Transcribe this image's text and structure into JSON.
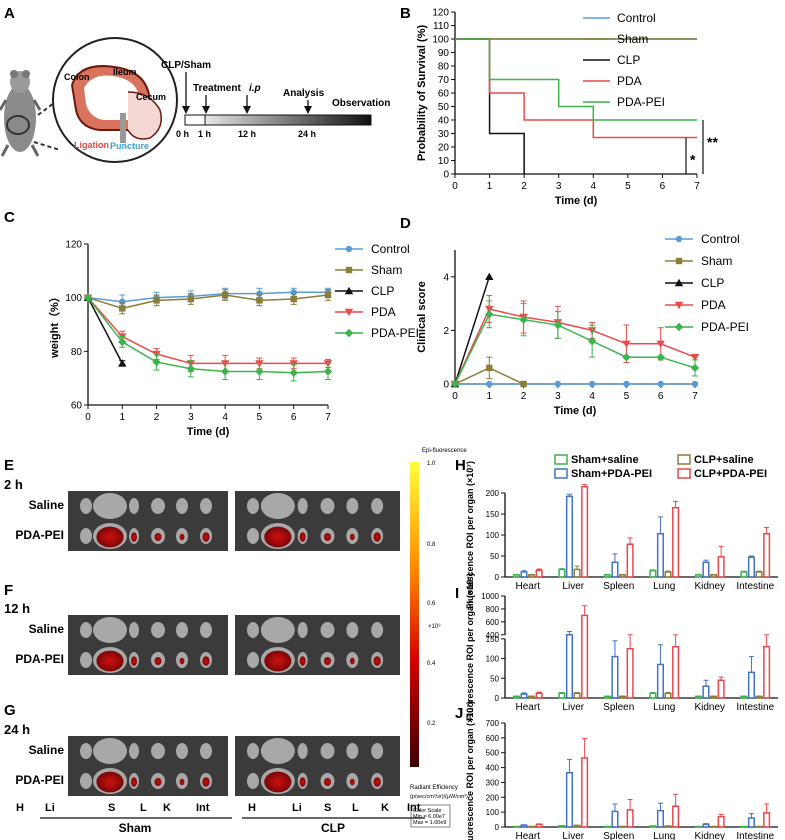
{
  "panel_labels": {
    "a": "A",
    "b": "B",
    "c": "C",
    "d": "D",
    "e": "E",
    "f": "F",
    "g": "G",
    "h": "H",
    "i": "I",
    "j": "J"
  },
  "schematic": {
    "colon": "Colon",
    "ileum": "Ileum",
    "cecum": "Cecum",
    "ligation": "Ligation",
    "puncture": "Puncture",
    "clp_sham": "CLP/Sham",
    "treatment": "Treatment",
    "ip": "i.p",
    "analysis": "Analysis",
    "observation": "Observation",
    "timeline": [
      "0 h",
      "1 h",
      "12 h",
      "24 h"
    ]
  },
  "chart_data": [
    {
      "id": "survival",
      "type": "line",
      "title": "",
      "xlabel": "Time (d)",
      "ylabel": "Probability of Survival (%)",
      "xlim": [
        0,
        7
      ],
      "ylim": [
        0,
        120
      ],
      "xticks": [
        "0",
        "1",
        "2",
        "3",
        "4",
        "5",
        "6",
        "7"
      ],
      "yticks": [
        "0",
        "10",
        "20",
        "30",
        "40",
        "50",
        "60",
        "70",
        "80",
        "90",
        "100",
        "110",
        "120"
      ],
      "series": [
        {
          "name": "Control",
          "color": "#5b9bd5",
          "x": [
            0,
            7
          ],
          "y": [
            100,
            100
          ]
        },
        {
          "name": "Sham",
          "color": "#8b7d3a",
          "x": [
            0,
            7
          ],
          "y": [
            100,
            100
          ]
        },
        {
          "name": "CLP",
          "color": "#111111",
          "x": [
            0,
            1,
            2
          ],
          "y": [
            100,
            30,
            0
          ]
        },
        {
          "name": "PDA",
          "color": "#e84c4c",
          "x": [
            0,
            1,
            2,
            4,
            7
          ],
          "y": [
            100,
            60,
            40,
            27,
            27
          ]
        },
        {
          "name": "PDA-PEI",
          "color": "#3cb44b",
          "x": [
            0,
            1,
            3,
            4,
            7
          ],
          "y": [
            100,
            70,
            50,
            40,
            40
          ]
        }
      ],
      "annotations": [
        "*",
        "**"
      ]
    },
    {
      "id": "weight",
      "type": "line",
      "xlabel": "Time (d)",
      "ylabel": "weight（%）",
      "xlim": [
        0,
        7
      ],
      "ylim": [
        60,
        120
      ],
      "xticks": [
        "0",
        "1",
        "2",
        "3",
        "4",
        "5",
        "6",
        "7"
      ],
      "yticks": [
        "60",
        "80",
        "100",
        "120"
      ],
      "series": [
        {
          "name": "Control",
          "color": "#5b9bd5",
          "marker": "circle",
          "x": [
            0,
            1,
            2,
            3,
            4,
            5,
            6,
            7
          ],
          "y": [
            100,
            98.5,
            100,
            100.5,
            101.5,
            101.5,
            102,
            102
          ],
          "err": [
            0,
            2.5,
            2,
            2,
            2,
            2,
            1.5,
            1.5
          ]
        },
        {
          "name": "Sham",
          "color": "#8b7d3a",
          "marker": "square",
          "x": [
            0,
            1,
            2,
            3,
            4,
            5,
            6,
            7
          ],
          "y": [
            100,
            96,
            99,
            99.5,
            101,
            99,
            99.5,
            101
          ],
          "err": [
            0,
            2,
            2,
            2,
            2,
            2,
            2,
            2
          ]
        },
        {
          "name": "CLP",
          "color": "#111111",
          "marker": "triangle",
          "x": [
            0,
            1
          ],
          "y": [
            100,
            75.5
          ],
          "err": [
            0,
            1
          ]
        },
        {
          "name": "PDA",
          "color": "#e84c4c",
          "marker": "triangle-down",
          "x": [
            0,
            1,
            2,
            3,
            4,
            5,
            6,
            7
          ],
          "y": [
            100,
            85.5,
            79,
            75.5,
            75.5,
            75.5,
            75.5,
            75.5
          ],
          "err": [
            0,
            2,
            2,
            3,
            3,
            2,
            2,
            1.5
          ]
        },
        {
          "name": "PDA-PEI",
          "color": "#3cb44b",
          "marker": "diamond",
          "x": [
            0,
            1,
            2,
            3,
            4,
            5,
            6,
            7
          ],
          "y": [
            100,
            83.5,
            76,
            73.5,
            72.5,
            72.5,
            72,
            72.5
          ],
          "err": [
            0,
            2,
            3,
            3,
            3,
            3,
            3,
            3
          ]
        }
      ]
    },
    {
      "id": "clinical",
      "type": "line",
      "xlabel": "Time (d)",
      "ylabel": "Clinical score",
      "xlim": [
        0,
        7
      ],
      "ylim": [
        0,
        5
      ],
      "xticks": [
        "0",
        "1",
        "2",
        "3",
        "4",
        "5",
        "6",
        "7"
      ],
      "yticks": [
        "0",
        "2",
        "4"
      ],
      "series": [
        {
          "name": "Control",
          "color": "#5b9bd5",
          "marker": "circle",
          "x": [
            0,
            1,
            2,
            3,
            4,
            5,
            6,
            7
          ],
          "y": [
            0,
            0,
            0,
            0,
            0,
            0,
            0,
            0
          ],
          "err": [
            0,
            0,
            0,
            0,
            0,
            0,
            0,
            0
          ]
        },
        {
          "name": "Sham",
          "color": "#8b7d3a",
          "marker": "square",
          "x": [
            0,
            1,
            2
          ],
          "y": [
            0,
            0.6,
            0
          ],
          "err": [
            0,
            0.4,
            0
          ]
        },
        {
          "name": "CLP",
          "color": "#111111",
          "marker": "triangle",
          "x": [
            0,
            1
          ],
          "y": [
            0,
            4
          ],
          "err": [
            0,
            0
          ]
        },
        {
          "name": "PDA",
          "color": "#e84c4c",
          "marker": "triangle-down",
          "x": [
            0,
            1,
            2,
            3,
            4,
            5,
            6,
            7
          ],
          "y": [
            0,
            2.8,
            2.5,
            2.3,
            2,
            1.5,
            1.5,
            1
          ],
          "err": [
            0,
            0.5,
            0.6,
            0.6,
            0.3,
            0.7,
            0.6,
            0
          ]
        },
        {
          "name": "PDA-PEI",
          "color": "#3cb44b",
          "marker": "diamond",
          "x": [
            0,
            1,
            2,
            3,
            4,
            5,
            6,
            7
          ],
          "y": [
            0,
            2.6,
            2.4,
            2.2,
            1.6,
            1,
            1,
            0.6
          ],
          "err": [
            0,
            0.5,
            0.6,
            0.5,
            0.6,
            0,
            0,
            0.3
          ]
        }
      ]
    },
    {
      "id": "bars2h",
      "type": "bar",
      "ylabel": "Fluorescence ROI per organ (×10⁷)",
      "ylim": [
        0,
        200
      ],
      "yticks": [
        "0",
        "50",
        "100",
        "150",
        "200"
      ],
      "categories": [
        "Heart",
        "Liver",
        "Spleen",
        "Lung",
        "Kidney",
        "Intestine"
      ],
      "series": [
        {
          "name": "Sham+saline",
          "color": "#3cb44b",
          "values": [
            5,
            18,
            5,
            15,
            5,
            12
          ],
          "err": [
            1,
            2,
            1,
            2,
            1,
            2
          ]
        },
        {
          "name": "Sham+PDA-PEI",
          "color": "#4472c4",
          "values": [
            12,
            192,
            35,
            103,
            35,
            47
          ],
          "err": [
            3,
            5,
            20,
            40,
            5,
            3
          ]
        },
        {
          "name": "CLP+saline",
          "color": "#8b7d3a",
          "values": [
            5,
            18,
            5,
            12,
            5,
            12
          ],
          "err": [
            1,
            8,
            1,
            2,
            1,
            2
          ]
        },
        {
          "name": "CLP+PDA-PEI",
          "color": "#e8484c",
          "values": [
            16,
            215,
            78,
            165,
            48,
            103
          ],
          "err": [
            3,
            5,
            15,
            15,
            25,
            15
          ]
        }
      ]
    },
    {
      "id": "bars12h",
      "type": "bar",
      "ylabel": "Fluorescence ROI per organ (×10⁷)",
      "ylim": [
        0,
        1000
      ],
      "yticks": [
        "0",
        "50",
        "100",
        "150",
        "400",
        "600",
        "800",
        "1000"
      ],
      "categories": [
        "Heart",
        "Liver",
        "Spleen",
        "Lung",
        "Kidney",
        "Intestine"
      ],
      "series": [
        {
          "name": "Sham+saline",
          "color": "#3cb44b",
          "values": [
            4,
            12,
            4,
            12,
            4,
            4
          ],
          "err": [
            1,
            2,
            1,
            2,
            1,
            1
          ]
        },
        {
          "name": "Sham+PDA-PEI",
          "color": "#4472c4",
          "values": [
            10,
            400,
            105,
            85,
            30,
            65
          ],
          "err": [
            3,
            50,
            40,
            50,
            15,
            40
          ]
        },
        {
          "name": "CLP+saline",
          "color": "#8b7d3a",
          "values": [
            4,
            12,
            4,
            12,
            4,
            4
          ],
          "err": [
            1,
            2,
            1,
            2,
            1,
            1
          ]
        },
        {
          "name": "CLP+PDA-PEI",
          "color": "#e8484c",
          "values": [
            12,
            700,
            125,
            130,
            45,
            130
          ],
          "err": [
            3,
            150,
            50,
            40,
            8,
            50
          ]
        }
      ]
    },
    {
      "id": "bars24h",
      "type": "bar",
      "ylabel": "Fluorescence ROI per organ (×10⁷)",
      "ylim": [
        0,
        700
      ],
      "yticks": [
        "0",
        "100",
        "200",
        "300",
        "400",
        "500",
        "600",
        "700"
      ],
      "categories": [
        "Heart",
        "Liver",
        "Spleen",
        "Lung",
        "Kidney",
        "Intestine"
      ],
      "series": [
        {
          "name": "Sham+saline",
          "color": "#3cb44b",
          "values": [
            3,
            8,
            3,
            6,
            3,
            3
          ],
          "err": [
            1,
            2,
            1,
            2,
            1,
            1
          ]
        },
        {
          "name": "Sham+PDA-PEI",
          "color": "#4472c4",
          "values": [
            12,
            365,
            105,
            110,
            18,
            60
          ],
          "err": [
            3,
            90,
            50,
            50,
            5,
            30
          ]
        },
        {
          "name": "CLP+saline",
          "color": "#8b7d3a",
          "values": [
            3,
            10,
            3,
            6,
            3,
            3
          ],
          "err": [
            1,
            2,
            1,
            2,
            1,
            1
          ]
        },
        {
          "name": "CLP+PDA-PEI",
          "color": "#e8484c",
          "values": [
            18,
            465,
            115,
            140,
            70,
            95
          ],
          "err": [
            3,
            130,
            70,
            80,
            15,
            60
          ]
        }
      ]
    }
  ],
  "imaging": {
    "rows": [
      {
        "time": "2 h"
      },
      {
        "time": "12 h"
      },
      {
        "time": "24 h"
      }
    ],
    "saline": "Saline",
    "pdapei": "PDA-PEI",
    "organs": [
      "H",
      "Li",
      "S",
      "L",
      "K",
      "Int"
    ],
    "groups": [
      "Sham",
      "CLP"
    ],
    "scale_title": "Epi-fluorescence",
    "scale_ticks": [
      "1.0",
      "0.8",
      "0.6",
      "0.4",
      "0.2"
    ],
    "scale_unit": "×10⁹",
    "radiant": "Radiant Efficiency",
    "radiant_unit": "(p/sec/cm²/sr)/(μW/cm²)",
    "color_scale": "Color Scale",
    "cmin": "Min = 6.00e7",
    "cmax": "Max = 1.00e9"
  }
}
